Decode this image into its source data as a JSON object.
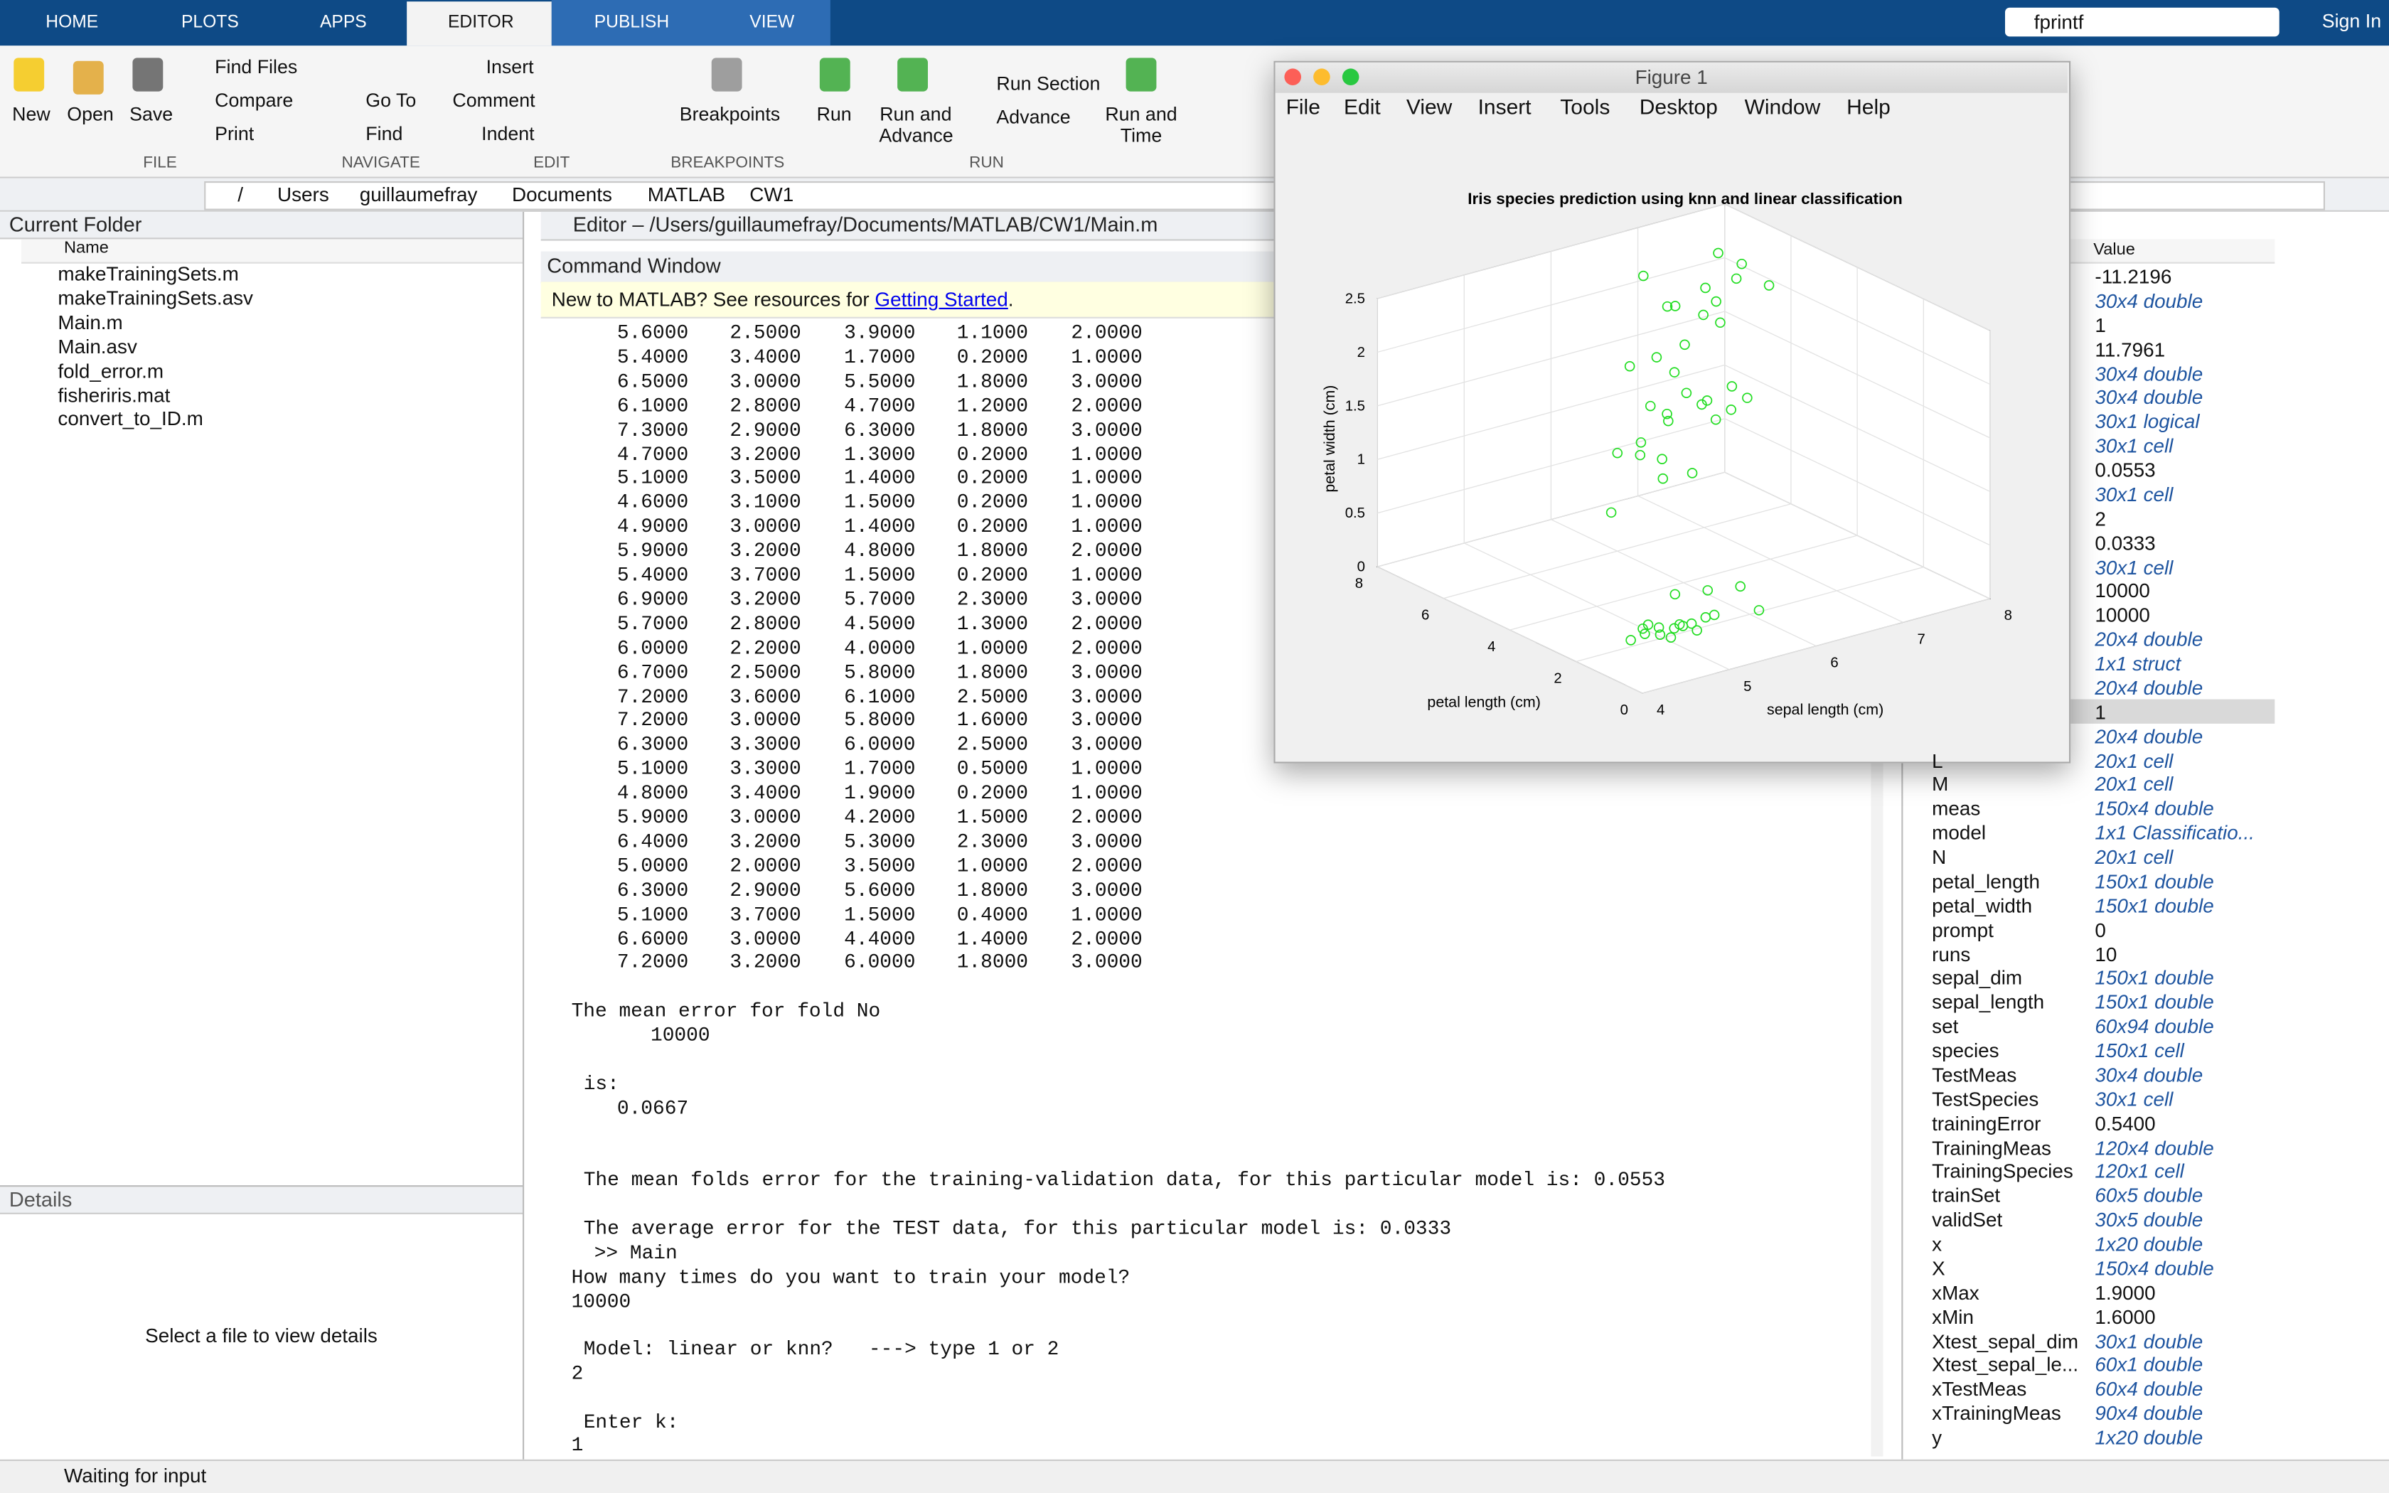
{
  "toolbar": {
    "tabs": [
      "HOME",
      "PLOTS",
      "APPS",
      "EDITOR",
      "PUBLISH",
      "VIEW"
    ],
    "search": "fprintf",
    "sign_in": "Sign In",
    "buttons": {
      "new": "New",
      "open": "Open",
      "save": "Save",
      "find_files": "Find Files",
      "compare": "Compare",
      "print": "Print",
      "go_to": "Go To",
      "find": "Find",
      "insert": "Insert",
      "comment": "Comment",
      "indent": "Indent",
      "breakpoints": "Breakpoints",
      "run": "Run",
      "run_and_advance": "Run and Advance",
      "run_section": "Run Section",
      "advance": "Advance",
      "run_and_time": "Run and Time"
    },
    "sections": [
      "FILE",
      "NAVIGATE",
      "EDIT",
      "BREAKPOINTS",
      "RUN"
    ]
  },
  "address": [
    "/",
    "Users",
    "guillaumefray",
    "Documents",
    "MATLAB",
    "CW1"
  ],
  "current_folder": {
    "title": "Current Folder",
    "column": "Name",
    "files": [
      "makeTrainingSets.m",
      "makeTrainingSets.asv",
      "Main.m",
      "Main.asv",
      "fold_error.m",
      "fisheriris.mat",
      "convert_to_ID.m"
    ]
  },
  "details": {
    "title": "Details",
    "message": "Select a file to view details"
  },
  "editor": {
    "title": "Editor – /Users/guillaumefray/Documents/MATLAB/CW1/Main.m"
  },
  "command_window": {
    "title": "Command Window",
    "banner": {
      "text": "New to MATLAB? See resources for ",
      "link": "Getting Started",
      "end": "."
    },
    "matrix": [
      [
        "5.6000",
        "2.5000",
        "3.9000",
        "1.1000",
        "2.0000"
      ],
      [
        "5.4000",
        "3.4000",
        "1.7000",
        "0.2000",
        "1.0000"
      ],
      [
        "6.5000",
        "3.0000",
        "5.5000",
        "1.8000",
        "3.0000"
      ],
      [
        "6.1000",
        "2.8000",
        "4.7000",
        "1.2000",
        "2.0000"
      ],
      [
        "7.3000",
        "2.9000",
        "6.3000",
        "1.8000",
        "3.0000"
      ],
      [
        "4.7000",
        "3.2000",
        "1.3000",
        "0.2000",
        "1.0000"
      ],
      [
        "5.1000",
        "3.5000",
        "1.4000",
        "0.2000",
        "1.0000"
      ],
      [
        "4.6000",
        "3.1000",
        "1.5000",
        "0.2000",
        "1.0000"
      ],
      [
        "4.9000",
        "3.0000",
        "1.4000",
        "0.2000",
        "1.0000"
      ],
      [
        "5.9000",
        "3.2000",
        "4.8000",
        "1.8000",
        "2.0000"
      ],
      [
        "5.4000",
        "3.7000",
        "1.5000",
        "0.2000",
        "1.0000"
      ],
      [
        "6.9000",
        "3.2000",
        "5.7000",
        "2.3000",
        "3.0000"
      ],
      [
        "5.7000",
        "2.8000",
        "4.5000",
        "1.3000",
        "2.0000"
      ],
      [
        "6.0000",
        "2.2000",
        "4.0000",
        "1.0000",
        "2.0000"
      ],
      [
        "6.7000",
        "2.5000",
        "5.8000",
        "1.8000",
        "3.0000"
      ],
      [
        "7.2000",
        "3.6000",
        "6.1000",
        "2.5000",
        "3.0000"
      ],
      [
        "7.2000",
        "3.0000",
        "5.8000",
        "1.6000",
        "3.0000"
      ],
      [
        "6.3000",
        "3.3000",
        "6.0000",
        "2.5000",
        "3.0000"
      ],
      [
        "5.1000",
        "3.3000",
        "1.7000",
        "0.5000",
        "1.0000"
      ],
      [
        "4.8000",
        "3.4000",
        "1.9000",
        "0.2000",
        "1.0000"
      ],
      [
        "5.9000",
        "3.0000",
        "4.2000",
        "1.5000",
        "2.0000"
      ],
      [
        "6.4000",
        "3.2000",
        "5.3000",
        "2.3000",
        "3.0000"
      ],
      [
        "5.0000",
        "2.0000",
        "3.5000",
        "1.0000",
        "2.0000"
      ],
      [
        "6.3000",
        "2.9000",
        "5.6000",
        "1.8000",
        "3.0000"
      ],
      [
        "5.1000",
        "3.7000",
        "1.5000",
        "0.4000",
        "1.0000"
      ],
      [
        "6.6000",
        "3.0000",
        "4.4000",
        "1.4000",
        "2.0000"
      ],
      [
        "7.2000",
        "3.2000",
        "6.0000",
        "1.8000",
        "3.0000"
      ]
    ],
    "lines": [
      "The mean error for fold No",
      "10000",
      "is:",
      "0.0667",
      "The mean folds error for the training-validation data, for this particular model is: 0.0553",
      "The average error for the TEST data, for this particular model is: 0.0333",
      ">> Main",
      "How many times do you want to train your model?",
      "10000",
      "Model: linear or knn?   ---> type 1 or 2",
      "2",
      "Enter k:"
    ],
    "input": "1"
  },
  "workspace": {
    "column": "Value",
    "rows": [
      {
        "value": "-11.2196"
      },
      {
        "value": "30x4 double"
      },
      {
        "value": "1"
      },
      {
        "value": "11.7961"
      },
      {
        "value": "30x4 double"
      },
      {
        "value": "30x4 double"
      },
      {
        "value": "30x1 logical"
      },
      {
        "value": "30x1 cell"
      },
      {
        "value": "0.0553"
      },
      {
        "value": "30x1 cell"
      },
      {
        "value": "2"
      },
      {
        "value": "0.0333"
      },
      {
        "value": "30x1 cell"
      },
      {
        "value": "10000"
      },
      {
        "value": "10000"
      },
      {
        "value": "20x4 double"
      },
      {
        "value": "1x1 struct"
      },
      {
        "value": "20x4 double"
      },
      {
        "value": "1"
      },
      {
        "value": "20x4 double"
      },
      {
        "name": "L",
        "value": "20x1 cell"
      },
      {
        "name": "M",
        "value": "20x1 cell"
      },
      {
        "name": "meas",
        "value": "150x4 double"
      },
      {
        "name": "model",
        "value": "1x1 Classificatio..."
      },
      {
        "name": "N",
        "value": "20x1 cell"
      },
      {
        "name": "petal_length",
        "value": "150x1 double"
      },
      {
        "name": "petal_width",
        "value": "150x1 double"
      },
      {
        "name": "prompt",
        "value": "0"
      },
      {
        "name": "runs",
        "value": "10"
      },
      {
        "name": "sepal_dim",
        "value": "150x1 double"
      },
      {
        "name": "sepal_length",
        "value": "150x1 double"
      },
      {
        "name": "set",
        "value": "60x94 double"
      },
      {
        "name": "species",
        "value": "150x1 cell"
      },
      {
        "name": "TestMeas",
        "value": "30x4 double"
      },
      {
        "name": "TestSpecies",
        "value": "30x1 cell"
      },
      {
        "name": "trainingError",
        "value": "0.5400"
      },
      {
        "name": "TrainingMeas",
        "value": "120x4 double"
      },
      {
        "name": "TrainingSpecies",
        "value": "120x1 cell"
      },
      {
        "name": "trainSet",
        "value": "60x5 double"
      },
      {
        "name": "validSet",
        "value": "30x5 double"
      },
      {
        "name": "x",
        "value": "1x20 double"
      },
      {
        "name": "X",
        "value": "150x4 double"
      },
      {
        "name": "xMax",
        "value": "1.9000"
      },
      {
        "name": "xMin",
        "value": "1.6000"
      },
      {
        "name": "Xtest_sepal_dim",
        "value": "30x1 double"
      },
      {
        "name": "Xtest_sepal_le...",
        "value": "60x1 double"
      },
      {
        "name": "xTestMeas",
        "value": "60x4 double"
      },
      {
        "name": "xTrainingMeas",
        "value": "90x4 double"
      },
      {
        "name": "y",
        "value": "1x20 double"
      }
    ]
  },
  "figure": {
    "window_title": "Figure 1",
    "menu": [
      "File",
      "Edit",
      "View",
      "Insert",
      "Tools",
      "Desktop",
      "Window",
      "Help"
    ],
    "chart_data": {
      "type": "scatter3",
      "title": "Iris species prediction using knn and linear classification",
      "xlabel": "sepal length (cm)",
      "ylabel": "petal length (cm)",
      "zlabel": "petal width (cm)",
      "color": "#22dd22",
      "xlim": [
        4,
        8
      ],
      "xticks": [
        4,
        5,
        6,
        7,
        8
      ],
      "ylim": [
        0,
        8
      ],
      "yticks": [
        0,
        2,
        4,
        6,
        8
      ],
      "zlim": [
        0,
        2.5
      ],
      "zticks": [
        0,
        0.5,
        1,
        1.5,
        2,
        2.5
      ],
      "grid": true,
      "x": [
        5.1,
        4.9,
        4.7,
        4.6,
        5.0,
        5.4,
        4.6,
        5.0,
        4.4,
        4.9,
        5.4,
        4.8,
        5.8,
        5.7,
        5.1,
        5.2,
        4.5,
        5.3,
        7.0,
        6.4,
        6.9,
        5.5,
        6.5,
        5.7,
        6.3,
        4.9,
        6.6,
        5.2,
        5.9,
        6.1,
        5.6,
        6.7,
        6.0,
        5.8,
        6.3,
        5.8,
        7.1,
        6.3,
        6.5,
        7.6,
        7.3,
        6.7,
        7.2,
        6.4,
        6.8,
        7.7,
        6.9,
        7.9,
        6.2,
        6.0
      ],
      "y": [
        1.4,
        1.4,
        1.3,
        1.5,
        1.4,
        1.7,
        1.4,
        1.5,
        1.4,
        1.5,
        1.5,
        1.6,
        1.2,
        1.5,
        1.9,
        1.5,
        1.3,
        1.5,
        4.7,
        4.5,
        4.9,
        4.0,
        4.6,
        4.5,
        4.7,
        3.3,
        4.6,
        3.9,
        4.2,
        4.0,
        3.6,
        4.4,
        4.5,
        4.1,
        6.0,
        5.1,
        5.9,
        5.6,
        5.8,
        6.6,
        6.3,
        5.8,
        6.1,
        5.3,
        5.5,
        6.7,
        5.7,
        6.4,
        4.8,
        5.0
      ],
      "z": [
        0.2,
        0.2,
        0.2,
        0.2,
        0.2,
        0.4,
        0.3,
        0.2,
        0.2,
        0.1,
        0.2,
        0.2,
        0.2,
        0.4,
        0.4,
        0.1,
        0.3,
        0.2,
        1.4,
        1.5,
        1.5,
        1.3,
        1.5,
        1.3,
        1.6,
        1.0,
        1.3,
        1.4,
        1.5,
        1.0,
        1.3,
        1.4,
        1.5,
        1.0,
        2.5,
        1.9,
        2.1,
        1.8,
        2.2,
        2.1,
        1.8,
        1.8,
        2.5,
        2.3,
        2.1,
        2.2,
        2.3,
        2.0,
        1.8,
        1.5
      ]
    }
  },
  "status": "Waiting for input"
}
